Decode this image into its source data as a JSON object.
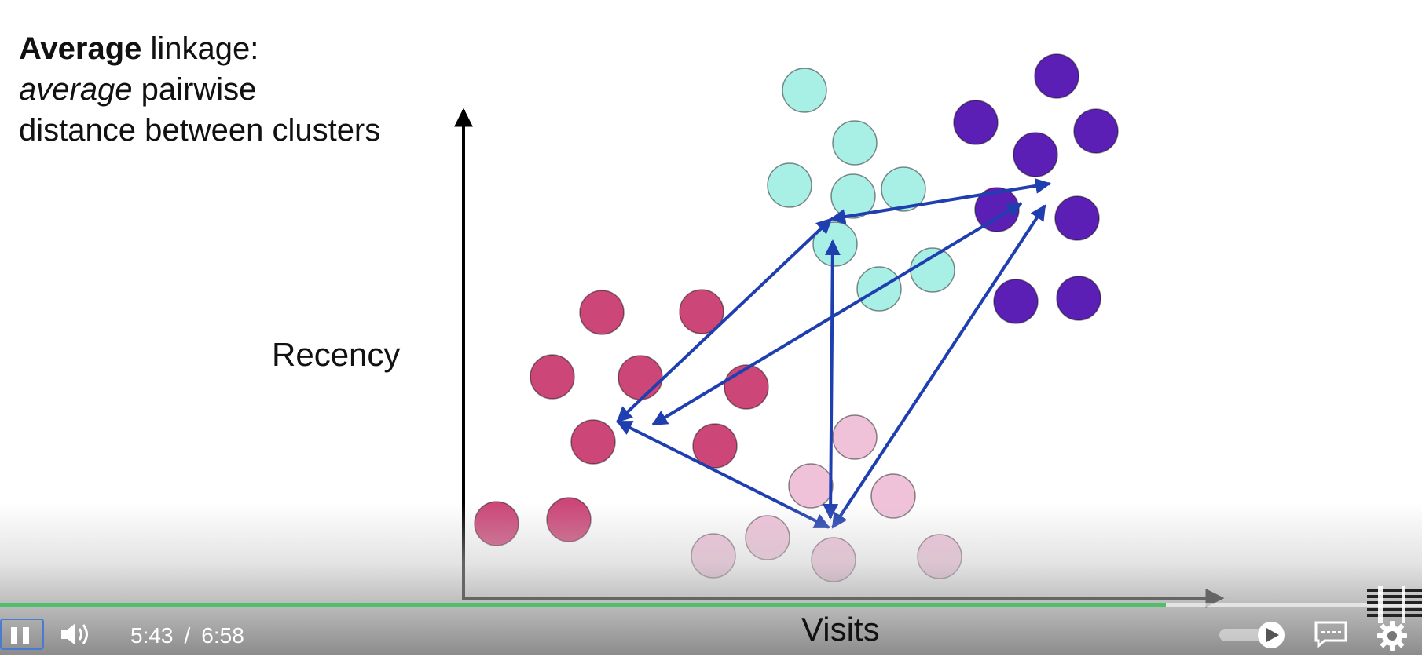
{
  "slide": {
    "title_bold": "Average",
    "title_rest": " linkage:",
    "line2_italic": "average",
    "line2_rest": " pairwise",
    "line3": "distance between clusters",
    "y_axis_label": "Recency",
    "x_axis_label": "Visits"
  },
  "colors": {
    "cluster_red": "#cc4677",
    "cluster_teal": "#a8f0e6",
    "cluster_purple": "#5b1fb5",
    "cluster_pink": "#f0c2da",
    "arrow": "#1f3fb0",
    "progress": "#4fbf6b"
  },
  "player": {
    "current_time": "5:43",
    "separator": "/",
    "duration": "6:58",
    "progress_fraction": 0.82,
    "icons": [
      "pause-icon",
      "volume-icon",
      "autoplay-toggle-icon",
      "captions-icon",
      "settings-gear-icon"
    ]
  },
  "logo": {
    "name": "ibm-logo"
  }
}
